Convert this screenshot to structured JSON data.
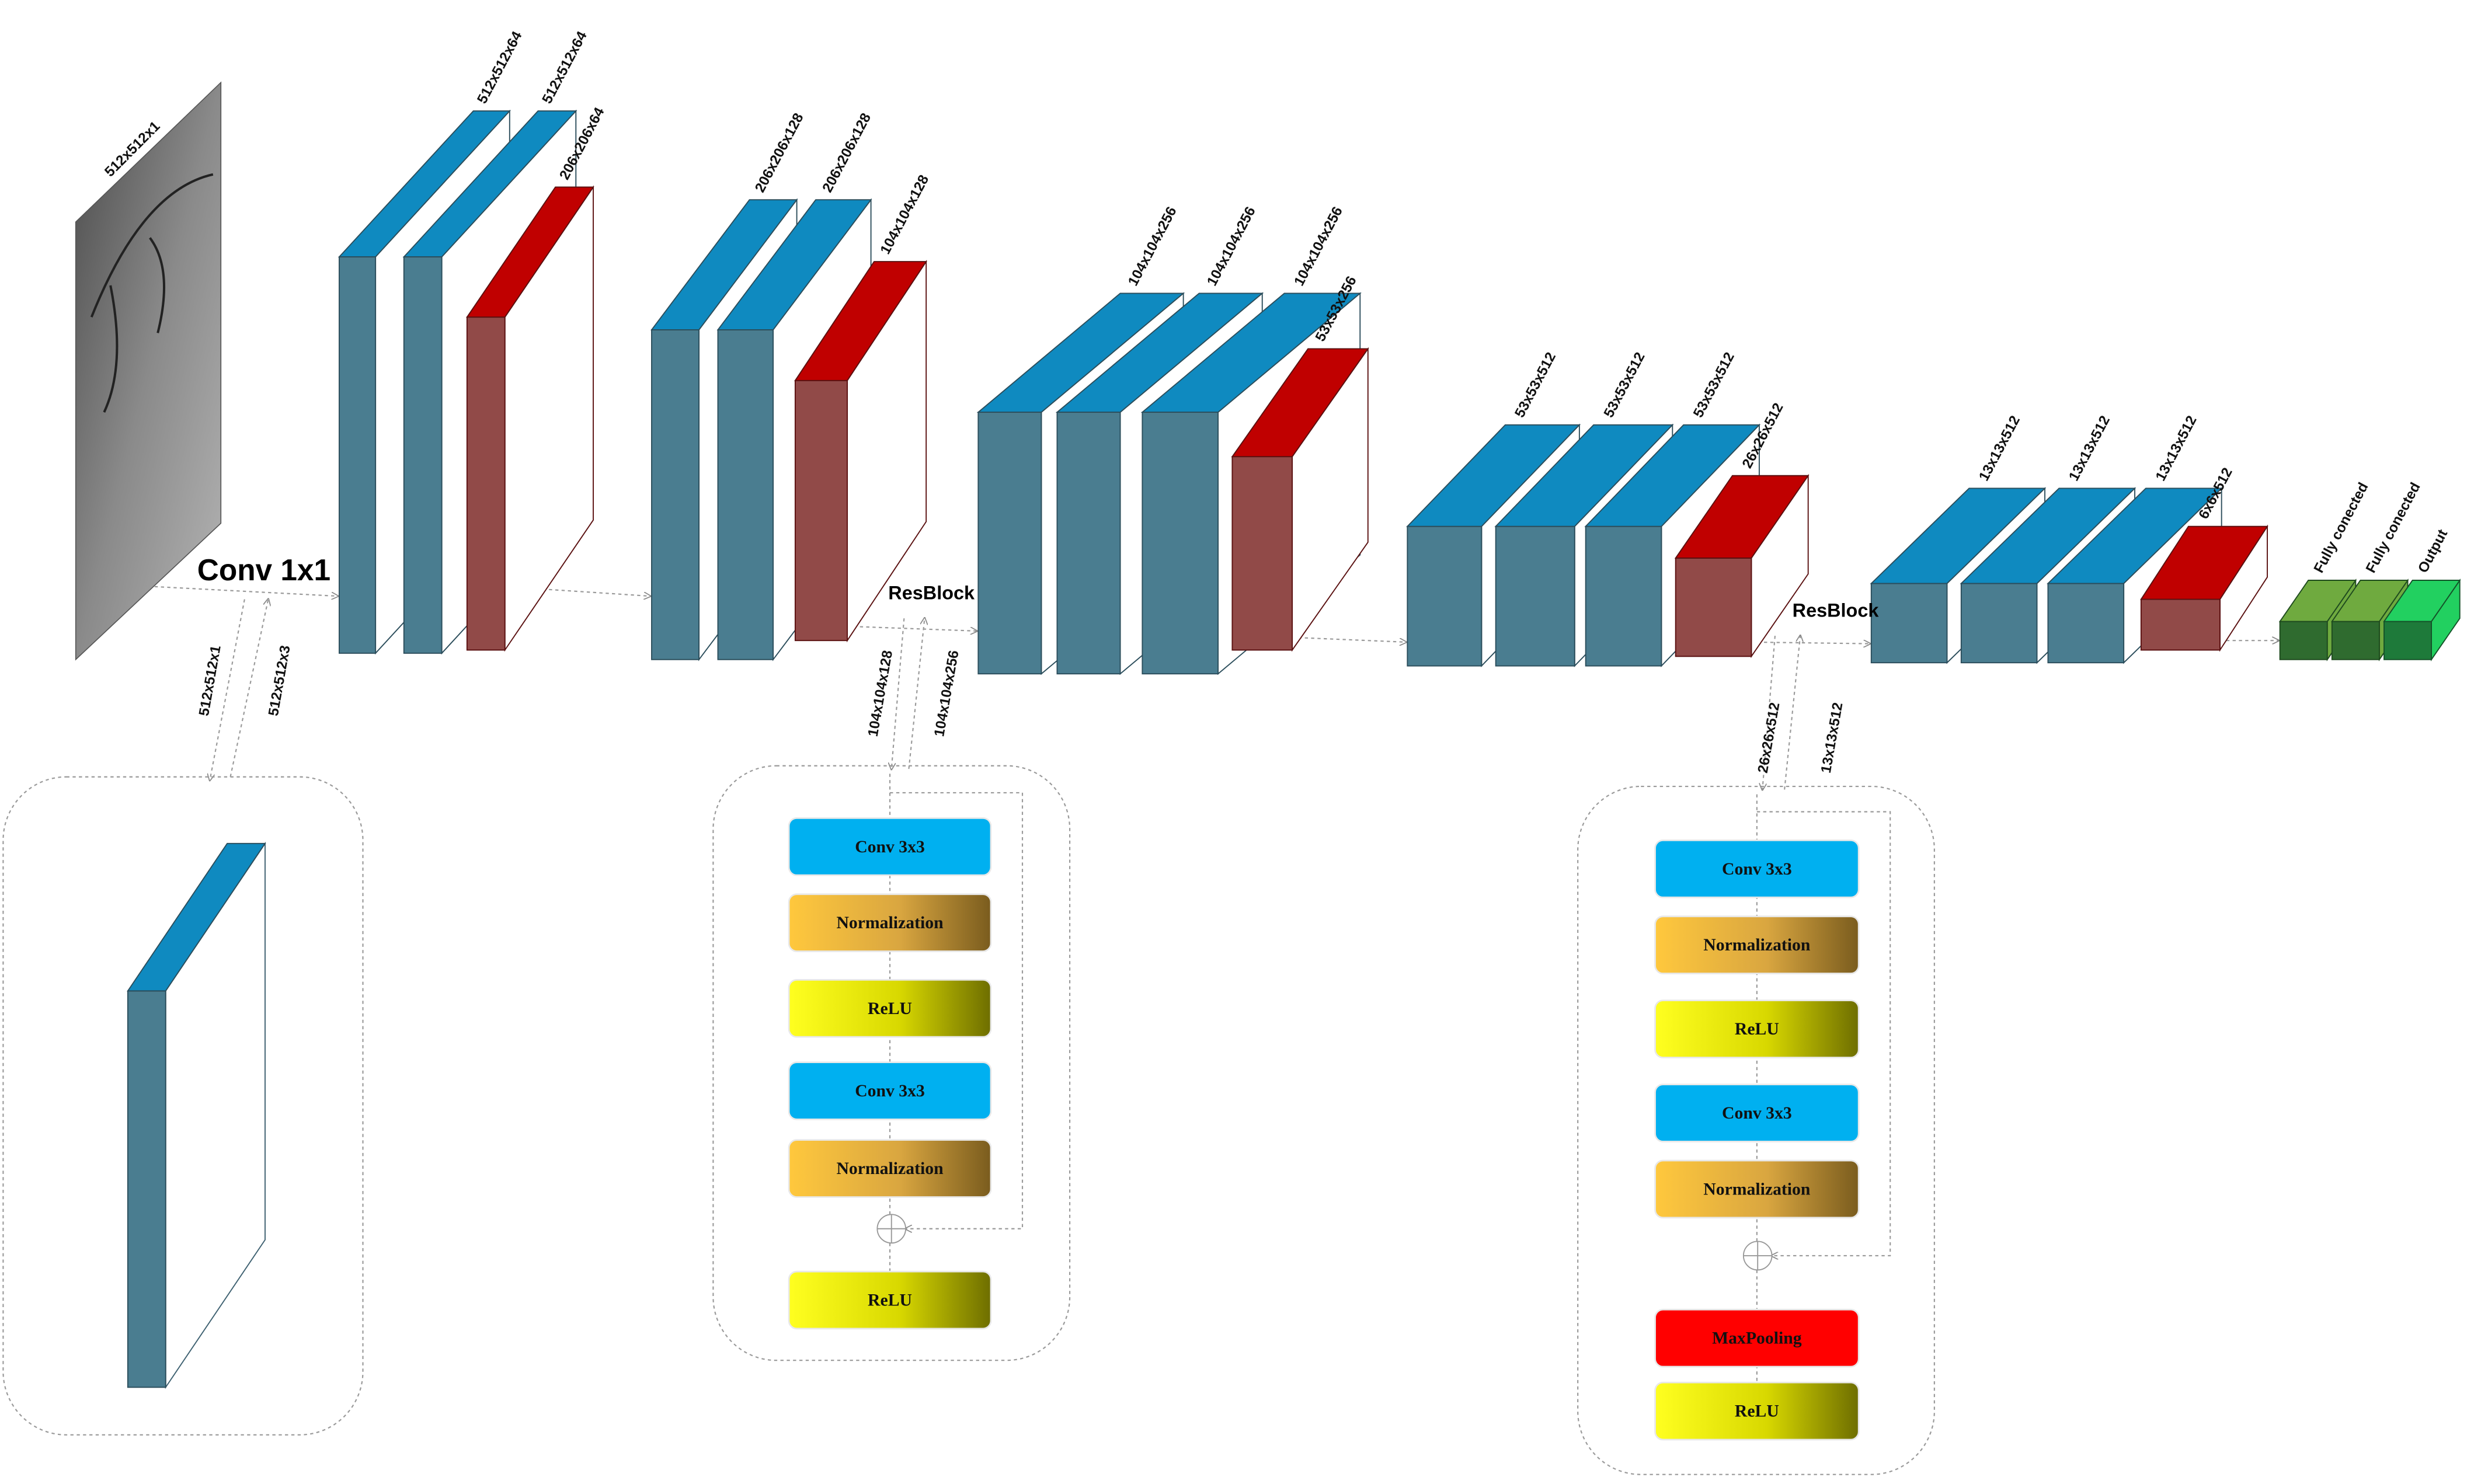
{
  "input": {
    "label": "512x512x1"
  },
  "conv1x1": "Conv 1x1",
  "input_link": {
    "down": "512x512x1",
    "up": "512x512x3"
  },
  "blocks": [
    {
      "label": "512x512x64"
    },
    {
      "label": "512x512x64"
    },
    {
      "label": "206x206x64"
    },
    {
      "label": "206x206x128"
    },
    {
      "label": "206x206x128"
    },
    {
      "label": "104x104x128"
    },
    {
      "label": "104x104x256"
    },
    {
      "label": "104x104x256"
    },
    {
      "label": "104x104x256"
    },
    {
      "label": "53x53x256"
    },
    {
      "label": "53x53x512"
    },
    {
      "label": "53x53x512"
    },
    {
      "label": "53x53x512"
    },
    {
      "label": "26x26x512"
    },
    {
      "label": "13x13x512"
    },
    {
      "label": "13x13x512"
    },
    {
      "label": "13x13x512"
    },
    {
      "label": "6x6x512"
    },
    {
      "label": "Fully conected"
    },
    {
      "label": "Fully conected"
    },
    {
      "label": "Output"
    }
  ],
  "resblocks": [
    {
      "title": "ResBlock",
      "in": "104x104x128",
      "out": "104x104x256",
      "layers": [
        "Conv 3x3",
        "Normalization",
        "ReLU",
        "Conv 3x3",
        "Normalization",
        "ReLU"
      ]
    },
    {
      "title": "ResBlock",
      "in": "26x26x512",
      "out": "13x13x512",
      "layers": [
        "Conv 3x3",
        "Normalization",
        "ReLU",
        "Conv 3x3",
        "Normalization",
        "MaxPooling",
        "ReLU"
      ]
    }
  ]
}
